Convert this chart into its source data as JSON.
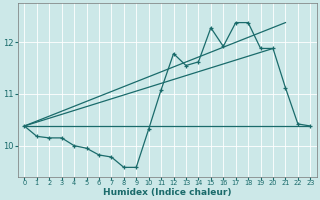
{
  "xlabel": "Humidex (Indice chaleur)",
  "bg_color": "#cce8e8",
  "line_color": "#1a6b6b",
  "grid_color": "#ffffff",
  "xlim": [
    -0.5,
    23.5
  ],
  "ylim": [
    9.4,
    12.75
  ],
  "yticks": [
    10,
    11,
    12
  ],
  "xticks": [
    0,
    1,
    2,
    3,
    4,
    5,
    6,
    7,
    8,
    9,
    10,
    11,
    12,
    13,
    14,
    15,
    16,
    17,
    18,
    19,
    20,
    21,
    22,
    23
  ],
  "series_main": {
    "x": [
      0,
      1,
      2,
      3,
      4,
      5,
      6,
      7,
      8,
      9,
      10,
      11,
      12,
      13,
      14,
      15,
      16,
      17,
      18,
      19,
      20,
      21,
      22,
      23
    ],
    "y": [
      10.38,
      10.18,
      10.15,
      10.15,
      10.0,
      9.95,
      9.82,
      9.78,
      9.58,
      9.58,
      10.32,
      11.08,
      11.78,
      11.55,
      11.62,
      12.28,
      11.92,
      12.38,
      12.38,
      11.88,
      11.88,
      11.12,
      10.42,
      10.38
    ]
  },
  "series_flat": {
    "x": [
      0,
      23
    ],
    "y": [
      10.38,
      10.38
    ]
  },
  "series_line1": {
    "x": [
      0,
      21
    ],
    "y": [
      10.38,
      12.38
    ]
  },
  "series_line2": {
    "x": [
      0,
      20
    ],
    "y": [
      10.38,
      11.88
    ]
  }
}
